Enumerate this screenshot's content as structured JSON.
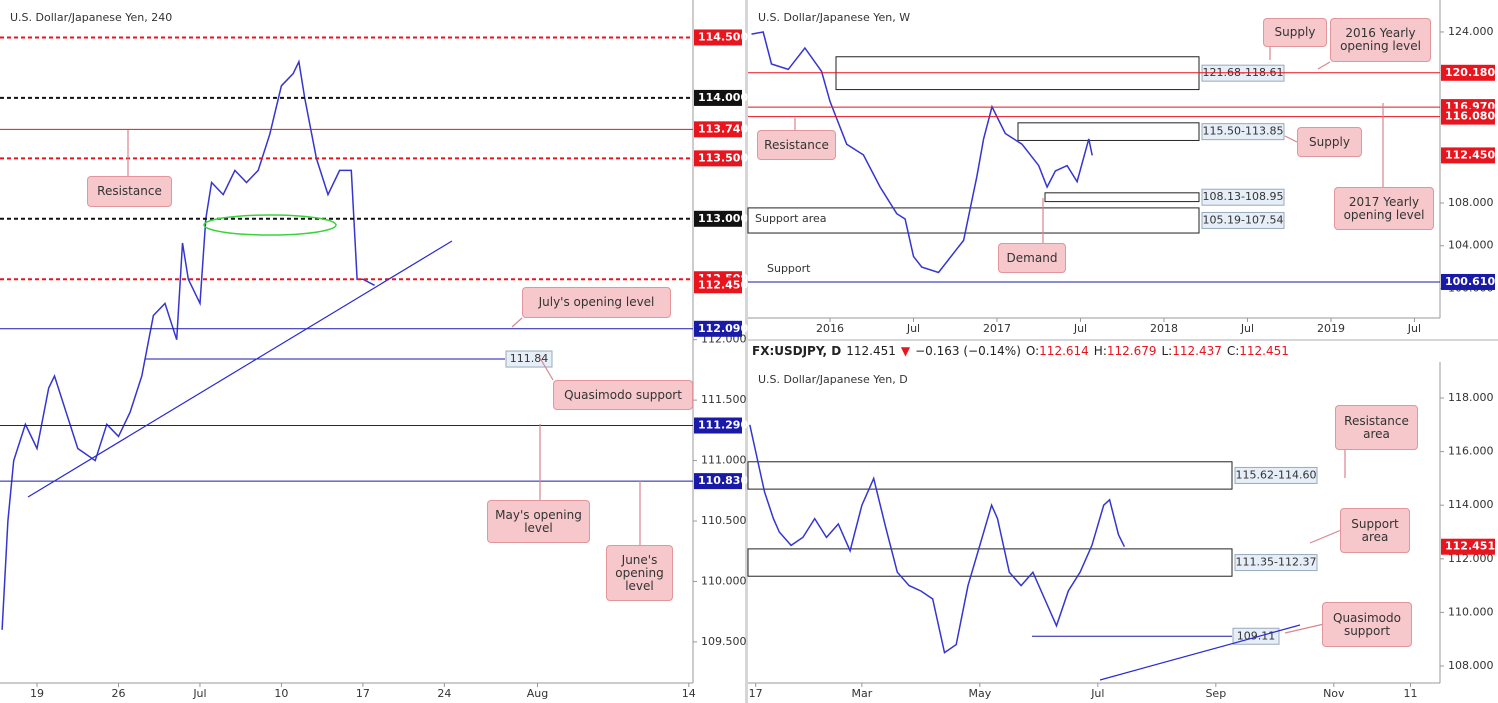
{
  "chart_data": [
    {
      "type": "line",
      "title": "U.S. Dollar/Japanese Yen, 240",
      "color": "#3535d0",
      "x": [
        -3,
        -2.5,
        -2,
        -1,
        0,
        1,
        1.5,
        2.5,
        3.5,
        5,
        6,
        7,
        8,
        9,
        10,
        11,
        12,
        12.5,
        13,
        14,
        14.5,
        15,
        16,
        17,
        18,
        19,
        20,
        21,
        22,
        22.5,
        23,
        24,
        25,
        26,
        27,
        27.5,
        28,
        29
      ],
      "values": [
        109.6,
        110.5,
        111.0,
        111.3,
        111.1,
        111.6,
        111.7,
        111.4,
        111.1,
        111.0,
        111.3,
        111.2,
        111.4,
        111.7,
        112.2,
        112.3,
        112.0,
        112.8,
        112.5,
        112.3,
        113.0,
        113.3,
        113.2,
        113.4,
        113.3,
        113.4,
        113.7,
        114.1,
        114.2,
        114.3,
        114.0,
        113.5,
        113.2,
        113.4,
        113.4,
        112.5,
        112.5,
        112.45
      ],
      "xlim": [
        -3.18,
        56.36
      ],
      "ylim": [
        109.16,
        114.81
      ],
      "xticks": [
        {
          "value": 0,
          "label": "19"
        },
        {
          "value": 7,
          "label": "26"
        },
        {
          "value": 14,
          "label": "Jul"
        },
        {
          "value": 21,
          "label": "10"
        },
        {
          "value": 28,
          "label": "17"
        },
        {
          "value": 35,
          "label": "24"
        },
        {
          "value": 43,
          "label": "Aug"
        },
        {
          "value": 56,
          "label": "14"
        }
      ],
      "yticks": [
        {
          "value": 109.5,
          "label": "109.500"
        },
        {
          "value": 110,
          "label": "110.000"
        },
        {
          "value": 110.5,
          "label": "110.500"
        },
        {
          "value": 111,
          "label": "111.000"
        },
        {
          "value": 111.5,
          "label": "111.500"
        },
        {
          "value": 112,
          "label": "112.000"
        }
      ],
      "levels": [
        {
          "value": 114.5,
          "label": "114.500",
          "color": "#e8141e",
          "style": "dashed"
        },
        {
          "value": 114,
          "label": "114.000",
          "color": "#111111",
          "style": "dashed"
        },
        {
          "value": 113.74,
          "label": "113.740",
          "color": "#e8141e",
          "style": "solid"
        },
        {
          "value": 113.5,
          "label": "113.500",
          "color": "#e8141e",
          "style": "dashed"
        },
        {
          "value": 113,
          "label": "113.000",
          "color": "#111111",
          "style": "dashed"
        },
        {
          "value": 112.5,
          "label": "112.500",
          "color": "#e8141e",
          "style": "dashed"
        },
        {
          "value": 112.45,
          "label": "112.450",
          "color": "#e8141e",
          "style": "none"
        },
        {
          "value": 112.09,
          "label": "112.090",
          "color": "#1a1aa8",
          "style": "solid"
        },
        {
          "value": 111.29,
          "label": "111.290",
          "color": "#1a1aa8",
          "style": "solid"
        },
        {
          "value": 110.83,
          "label": "110.830",
          "color": "#1a1aa8",
          "style": "solid"
        }
      ],
      "marks": [
        {
          "value": 111.84,
          "label": "111.84"
        }
      ],
      "zones": [],
      "labels": [],
      "callouts": [
        "Resistance",
        "July's opening level",
        "Quasimodo support",
        "May's opening level",
        "June's opening level"
      ]
    },
    {
      "type": "line",
      "title": "U.S. Dollar/Japanese Yen, W",
      "color": "#3535d0",
      "x": [
        2015.53,
        2015.6,
        2015.65,
        2015.75,
        2015.85,
        2015.95,
        2016.0,
        2016.1,
        2016.2,
        2016.3,
        2016.4,
        2016.45,
        2016.5,
        2016.55,
        2016.65,
        2016.75,
        2016.8,
        2016.88,
        2016.92,
        2016.97,
        2017.05,
        2017.15,
        2017.25,
        2017.3,
        2017.35,
        2017.42,
        2017.48,
        2017.55,
        2017.57
      ],
      "values": [
        123.8,
        124.0,
        121.0,
        120.5,
        122.5,
        120.3,
        117.5,
        113.5,
        112.5,
        109.5,
        107.0,
        106.5,
        103.0,
        102.0,
        101.5,
        103.5,
        104.5,
        110.5,
        114.0,
        117.0,
        114.5,
        113.5,
        111.5,
        109.5,
        111.0,
        111.5,
        110.0,
        114.0,
        112.45
      ],
      "xlim": [
        2015.509,
        2019.653
      ],
      "ylim": [
        97.24,
        126.99
      ],
      "xticks": [
        2016,
        {
          "value": 2016.5,
          "label": "Jul"
        },
        2017,
        {
          "value": 2017.5,
          "label": "Jul"
        },
        2018,
        {
          "value": 2018.5,
          "label": "Jul"
        },
        2019,
        {
          "value": 2019.5,
          "label": "Jul"
        }
      ],
      "yticks": [
        {
          "value": 100,
          "label": "100.000"
        },
        {
          "value": 104,
          "label": "104.000"
        },
        {
          "value": 108,
          "label": "108.000"
        },
        {
          "value": 124,
          "label": "124.000"
        }
      ],
      "levels": [
        {
          "value": 120.18,
          "label": "120.180",
          "color": "#e8141e",
          "style": "solid"
        },
        {
          "value": 116.97,
          "label": "116.970",
          "color": "#e8141e",
          "style": "solid"
        },
        {
          "value": 116.08,
          "label": "116.080",
          "color": "#e8141e",
          "style": "solid"
        },
        {
          "value": 112.45,
          "label": "112.450",
          "color": "#e8141e",
          "style": "none"
        },
        {
          "value": 100.61,
          "label": "100.610",
          "color": "#1a1aa8",
          "style": "solid"
        }
      ],
      "marks": [],
      "zones": [
        {
          "label": "121.68-118.61",
          "values": [
            121.68,
            118.61
          ]
        },
        {
          "label": "115.50-113.85",
          "values": [
            115.5,
            113.85
          ]
        },
        {
          "label": "108.13-108.95",
          "values": [
            108.13,
            108.95
          ]
        },
        {
          "label": "105.19-107.54",
          "values": [
            105.19,
            107.54
          ]
        }
      ],
      "labels": [
        "Support area",
        "Support"
      ],
      "callouts": [
        "Supply",
        "2016 Yearly opening level",
        "Resistance",
        "Supply",
        "2017 Yearly opening level",
        "Demand"
      ]
    },
    {
      "type": "line",
      "title": "U.S. Dollar/Japanese Yen, D",
      "color": "#3535d0",
      "header": {
        "symbol": "FX:USDJPY, D",
        "last": "112.451",
        "arrow": "▼",
        "change": "−0.163 (−0.14%)",
        "fields": [
          {
            "label": "O:",
            "value": "112.614"
          },
          {
            "label": "H:",
            "value": "112.679"
          },
          {
            "label": "L:",
            "value": "112.437"
          },
          {
            "label": "C:",
            "value": "112.451"
          }
        ]
      },
      "x": [
        1.1,
        1.2,
        1.35,
        1.5,
        1.6,
        1.8,
        2.0,
        2.2,
        2.4,
        2.6,
        2.8,
        3.0,
        3.2,
        3.4,
        3.6,
        3.8,
        4.0,
        4.2,
        4.4,
        4.6,
        4.8,
        5.0,
        5.2,
        5.3,
        5.5,
        5.7,
        5.9,
        6.1,
        6.3,
        6.5,
        6.7,
        6.9,
        7.1,
        7.2,
        7.35,
        7.45
      ],
      "values": [
        117.0,
        116.0,
        114.5,
        113.5,
        113.0,
        112.5,
        112.8,
        113.5,
        112.8,
        113.3,
        112.3,
        114.0,
        115.0,
        113.2,
        111.5,
        111.0,
        110.8,
        110.5,
        108.5,
        108.8,
        111.0,
        112.5,
        114.0,
        113.5,
        111.5,
        111.0,
        111.5,
        110.5,
        109.5,
        110.8,
        111.5,
        112.5,
        114.0,
        114.2,
        112.9,
        112.45
      ],
      "xlim": [
        1.07,
        12.8
      ],
      "ylim": [
        107.366,
        119.343
      ],
      "xticks": [
        {
          "value": 1.2,
          "label": "17"
        },
        {
          "value": 3,
          "label": "Mar"
        },
        {
          "value": 5,
          "label": "May"
        },
        {
          "value": 7,
          "label": "Jul"
        },
        {
          "value": 9,
          "label": "Sep"
        },
        {
          "value": 11,
          "label": "Nov"
        },
        {
          "value": 12.3,
          "label": "11"
        }
      ],
      "yticks": [
        {
          "value": 108,
          "label": "108.000"
        },
        {
          "value": 110,
          "label": "110.000"
        },
        {
          "value": 112,
          "label": "112.000"
        },
        {
          "value": 114,
          "label": "114.000"
        },
        {
          "value": 116,
          "label": "116.000"
        },
        {
          "value": 118,
          "label": "118.000"
        }
      ],
      "levels": [
        {
          "value": 112.451,
          "label": "112.451",
          "color": "#e8141e",
          "style": "none"
        }
      ],
      "marks": [
        {
          "value": 109.11,
          "label": "109.11"
        }
      ],
      "zones": [
        {
          "label": "115.62-114.60",
          "values": [
            115.62,
            114.6
          ]
        },
        {
          "label": "111.35-112.37",
          "values": [
            111.35,
            112.37
          ]
        }
      ],
      "labels": [],
      "callouts": [
        "Resistance area",
        "Support area",
        "Quasimodo support"
      ]
    }
  ]
}
